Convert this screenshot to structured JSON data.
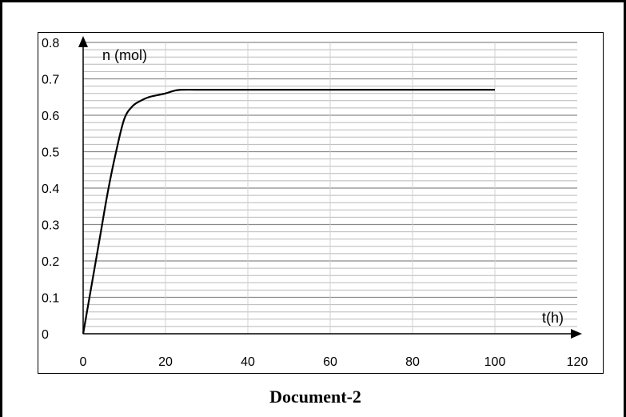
{
  "caption": "Document-2",
  "chart_data": {
    "type": "line",
    "xlabel": "t(h)",
    "ylabel": "n (mol)",
    "xlim": [
      0,
      120
    ],
    "ylim": [
      0,
      0.8
    ],
    "x_ticks": [
      "0",
      "20",
      "40",
      "60",
      "80",
      "100",
      "120"
    ],
    "y_ticks": [
      "0",
      "0.1",
      "0.2",
      "0.3",
      "0.4",
      "0.5",
      "0.6",
      "0.7",
      "0.8"
    ],
    "grid": true,
    "legend": "none",
    "series": [
      {
        "x": [
          0,
          2,
          4,
          6,
          8,
          10,
          12,
          14,
          16,
          18,
          20,
          22,
          24,
          30,
          40,
          60,
          80,
          100
        ],
        "y": [
          0,
          0.13,
          0.26,
          0.39,
          0.5,
          0.59,
          0.625,
          0.64,
          0.65,
          0.655,
          0.66,
          0.667,
          0.67,
          0.67,
          0.67,
          0.67,
          0.67,
          0.67
        ]
      }
    ]
  }
}
